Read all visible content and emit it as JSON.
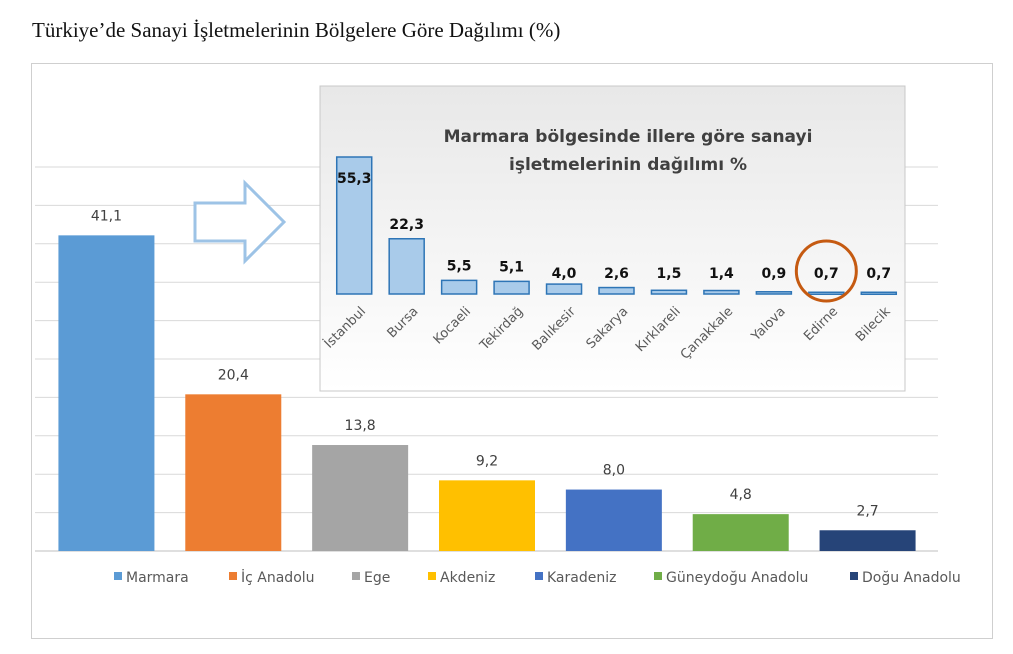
{
  "page_title": "Türkiye’de Sanayi İşletmelerinin Bölgelere Göre Dağılımı (%)",
  "chart_data": [
    {
      "type": "bar",
      "categories": [
        "Marmara",
        "İç Anadolu",
        "Ege",
        "Akdeniz",
        "Karadeniz",
        "Güneydoğu Anadolu",
        "Doğu Anadolu"
      ],
      "values": [
        41.1,
        20.4,
        13.8,
        9.2,
        8.0,
        4.8,
        2.7
      ],
      "value_labels": [
        "41,1",
        "20,4",
        "13,8",
        "9,2",
        "8,0",
        "4,8",
        "2,7"
      ],
      "colors": [
        "#5b9bd5",
        "#ed7d31",
        "#a5a5a5",
        "#ffc000",
        "#4472c4",
        "#70ad47",
        "#264478"
      ],
      "legend_labels": [
        "Marmara",
        "İç Anadolu",
        "Ege",
        "Akdeniz",
        "Karadeniz",
        "Güneydoğu Anadolu",
        "Doğu Anadolu"
      ],
      "legend": "bottom",
      "ylim": [
        0,
        50
      ],
      "grid": true
    },
    {
      "type": "bar",
      "title": "Marmara bölgesinde illere göre sanayi işletmelerinin dağılımı %",
      "title_lines": [
        "Marmara bölgesinde illere göre sanayi",
        "işletmelerinin dağılımı %"
      ],
      "categories": [
        "İstanbul",
        "Bursa",
        "Kocaeli",
        "Tekirdağ",
        "Balıkesir",
        "Sakarya",
        "Kırklareli",
        "Çanakkale",
        "Yalova",
        "Edirne",
        "Bilecik"
      ],
      "values": [
        55.3,
        22.3,
        5.5,
        5.1,
        4.0,
        2.6,
        1.5,
        1.4,
        0.9,
        0.7,
        0.7
      ],
      "value_labels": [
        "55,3",
        "22,3",
        "5,5",
        "5,1",
        "4,0",
        "2,6",
        "1,5",
        "1,4",
        "0,9",
        "0,7",
        "0,7"
      ],
      "bar_color": "#a9cbea",
      "bar_border": "#2e75b6",
      "highlighted_category": "Edirne",
      "highlight_color": "#c55a11"
    }
  ]
}
